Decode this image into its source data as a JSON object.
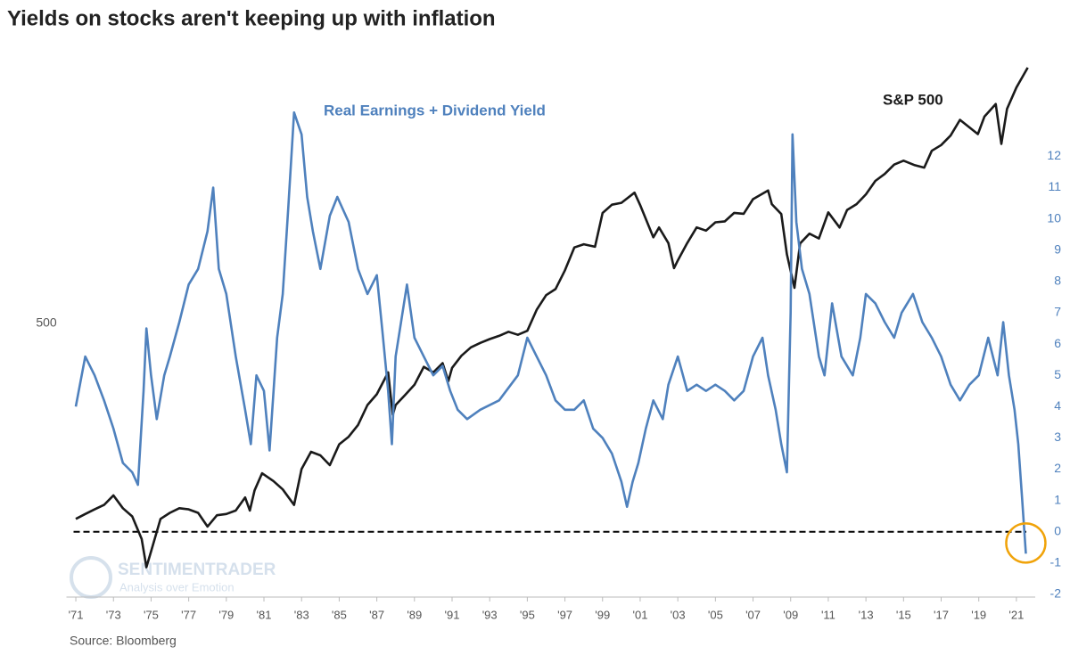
{
  "chart_data": {
    "type": "line",
    "title": "Yields on stocks aren't keeping up with inflation",
    "source": "Source: Bloomberg",
    "watermark": [
      "SENTIMENTRADER",
      "Analysis over Emotion"
    ],
    "log_scale": true,
    "xlim": [
      1970.5,
      2022
    ],
    "xticks": [
      {
        "value": 1971,
        "label": "'71"
      },
      {
        "value": 1973,
        "label": "'73"
      },
      {
        "value": 1975,
        "label": "'75"
      },
      {
        "value": 1977,
        "label": "'77"
      },
      {
        "value": 1979,
        "label": "'79"
      },
      {
        "value": 1981,
        "label": "'81"
      },
      {
        "value": 1983,
        "label": "'83"
      },
      {
        "value": 1985,
        "label": "'85"
      },
      {
        "value": 1987,
        "label": "'87"
      },
      {
        "value": 1989,
        "label": "'89"
      },
      {
        "value": 1991,
        "label": "'91"
      },
      {
        "value": 1993,
        "label": "'93"
      },
      {
        "value": 1995,
        "label": "'95"
      },
      {
        "value": 1997,
        "label": "'97"
      },
      {
        "value": 1999,
        "label": "'99"
      },
      {
        "value": 2001,
        "label": "'01"
      },
      {
        "value": 2003,
        "label": "'03"
      },
      {
        "value": 2005,
        "label": "'05"
      },
      {
        "value": 2007,
        "label": "'07"
      },
      {
        "value": 2009,
        "label": "'09"
      },
      {
        "value": 2011,
        "label": "'11"
      },
      {
        "value": 2013,
        "label": "'13"
      },
      {
        "value": 2015,
        "label": "'15"
      },
      {
        "value": 2017,
        "label": "'17"
      },
      {
        "value": 2019,
        "label": "'19"
      },
      {
        "value": 2021,
        "label": "'21"
      }
    ],
    "ylim": [
      50,
      4600
    ],
    "yticks": [
      500
    ],
    "y2lim": [
      -2,
      15
    ],
    "y2ticks": [
      -2,
      -1,
      0,
      1,
      2,
      3,
      4,
      5,
      6,
      7,
      8,
      9,
      10,
      11,
      12
    ],
    "reference_line": {
      "value": 0,
      "axis": "y2"
    },
    "series": [
      {
        "name": "S&P 500",
        "color": "#1a1a1a",
        "x": [
          1971.0,
          1971.5,
          1972.0,
          1972.5,
          1973.0,
          1973.5,
          1974.0,
          1974.5,
          1974.75,
          1975.0,
          1975.5,
          1976.0,
          1976.5,
          1977.0,
          1977.5,
          1978.0,
          1978.5,
          1979.0,
          1979.5,
          1980.0,
          1980.25,
          1980.5,
          1980.9,
          1981.5,
          1982.0,
          1982.6,
          1983.0,
          1983.5,
          1984.0,
          1984.5,
          1985.0,
          1985.5,
          1986.0,
          1986.5,
          1987.0,
          1987.6,
          1987.85,
          1988.0,
          1988.5,
          1989.0,
          1989.5,
          1990.0,
          1990.5,
          1990.8,
          1991.0,
          1991.5,
          1992.0,
          1992.5,
          1993.0,
          1993.5,
          1994.0,
          1994.5,
          1995.0,
          1995.5,
          1996.0,
          1996.5,
          1997.0,
          1997.5,
          1998.0,
          1998.6,
          1999.0,
          1999.5,
          2000.0,
          2000.7,
          2001.0,
          2001.7,
          2002.0,
          2002.5,
          2002.8,
          2003.0,
          2003.5,
          2004.0,
          2004.5,
          2005.0,
          2005.5,
          2006.0,
          2006.5,
          2007.0,
          2007.8,
          2008.0,
          2008.5,
          2008.8,
          2009.2,
          2009.5,
          2010.0,
          2010.5,
          2011.0,
          2011.6,
          2012.0,
          2012.5,
          2013.0,
          2013.5,
          2014.0,
          2014.5,
          2015.0,
          2015.6,
          2016.1,
          2016.5,
          2017.0,
          2017.5,
          2018.0,
          2018.95,
          2019.3,
          2019.9,
          2020.2,
          2020.5,
          2021.0,
          2021.6
        ],
        "values": [
          95,
          99,
          103,
          107,
          116,
          104,
          97,
          80,
          63,
          72,
          95,
          100,
          104,
          103,
          100,
          89,
          98,
          99,
          102,
          114,
          102,
          121,
          140,
          131,
          122,
          107,
          145,
          168,
          163,
          150,
          179,
          191,
          211,
          250,
          274,
          330,
          230,
          250,
          272,
          297,
          346,
          330,
          357,
          306,
          343,
          380,
          408,
          424,
          438,
          450,
          466,
          454,
          470,
          562,
          636,
          670,
          786,
          954,
          980,
          960,
          1279,
          1372,
          1394,
          1520,
          1366,
          1040,
          1130,
          990,
          800,
          855,
          990,
          1131,
          1101,
          1181,
          1191,
          1280,
          1270,
          1438,
          1549,
          1378,
          1267,
          900,
          677,
          987,
          1073,
          1030,
          1286,
          1130,
          1312,
          1379,
          1498,
          1680,
          1782,
          1930,
          1995,
          1920,
          1880,
          2170,
          2278,
          2470,
          2823,
          2500,
          2900,
          3230,
          2300,
          3100,
          3714,
          4400
        ]
      },
      {
        "name": "Real Earnings + Dividend Yield",
        "color": "#4f81bd",
        "axis": "y2",
        "x": [
          1971.0,
          1971.5,
          1972.0,
          1972.5,
          1973.0,
          1973.5,
          1974.0,
          1974.3,
          1974.6,
          1974.75,
          1975.0,
          1975.3,
          1975.7,
          1976.0,
          1976.5,
          1977.0,
          1977.5,
          1978.0,
          1978.3,
          1978.6,
          1979.0,
          1979.5,
          1980.0,
          1980.3,
          1980.6,
          1981.0,
          1981.3,
          1981.7,
          1982.0,
          1982.3,
          1982.6,
          1983.0,
          1983.3,
          1983.6,
          1984.0,
          1984.5,
          1984.9,
          1985.5,
          1986.0,
          1986.5,
          1987.0,
          1987.3,
          1987.6,
          1987.8,
          1988.0,
          1988.6,
          1989.0,
          1989.5,
          1990.0,
          1990.5,
          1990.9,
          1991.3,
          1991.8,
          1992.5,
          1993.5,
          1994.5,
          1995.0,
          1995.5,
          1996.0,
          1996.5,
          1997.0,
          1997.5,
          1998.0,
          1998.5,
          1999.0,
          1999.5,
          2000.0,
          2000.3,
          2000.6,
          2000.9,
          2001.3,
          2001.7,
          2002.2,
          2002.5,
          2003.0,
          2003.5,
          2004.0,
          2004.5,
          2005.0,
          2005.5,
          2006.0,
          2006.5,
          2007.0,
          2007.5,
          2007.8,
          2008.2,
          2008.5,
          2008.8,
          2009.0,
          2009.1,
          2009.3,
          2009.6,
          2010.0,
          2010.5,
          2010.8,
          2011.2,
          2011.7,
          2012.3,
          2012.7,
          2013.0,
          2013.5,
          2014.0,
          2014.5,
          2014.9,
          2015.5,
          2016.0,
          2016.5,
          2017.0,
          2017.5,
          2018.0,
          2018.5,
          2019.0,
          2019.5,
          2020.0,
          2020.3,
          2020.6,
          2020.9,
          2021.1,
          2021.3,
          2021.5
        ],
        "values": [
          4.0,
          5.6,
          5.0,
          4.2,
          3.3,
          2.2,
          1.9,
          1.5,
          4.5,
          6.5,
          5.0,
          3.6,
          5.0,
          5.6,
          6.7,
          7.9,
          8.4,
          9.6,
          11.0,
          8.4,
          7.6,
          5.6,
          3.9,
          2.8,
          5.0,
          4.5,
          2.6,
          6.2,
          7.6,
          10.4,
          13.4,
          12.7,
          10.7,
          9.6,
          8.4,
          10.1,
          10.7,
          9.9,
          8.4,
          7.6,
          8.2,
          6.4,
          4.5,
          2.8,
          5.6,
          7.9,
          6.2,
          5.6,
          5.0,
          5.3,
          4.5,
          3.9,
          3.6,
          3.9,
          4.2,
          5.0,
          6.2,
          5.6,
          5.0,
          4.2,
          3.9,
          3.9,
          4.2,
          3.3,
          3.0,
          2.5,
          1.6,
          0.8,
          1.6,
          2.2,
          3.3,
          4.2,
          3.6,
          4.7,
          5.6,
          4.5,
          4.7,
          4.5,
          4.7,
          4.5,
          4.2,
          4.5,
          5.6,
          6.2,
          5.0,
          3.9,
          2.8,
          1.9,
          7.0,
          12.7,
          9.9,
          8.4,
          7.6,
          5.6,
          5.0,
          7.3,
          5.6,
          5.0,
          6.2,
          7.6,
          7.3,
          6.7,
          6.2,
          7.0,
          7.6,
          6.7,
          6.2,
          5.6,
          4.7,
          4.2,
          4.7,
          5.0,
          6.2,
          5.0,
          6.7,
          5.0,
          3.9,
          2.8,
          1.1,
          -0.7
        ]
      }
    ]
  }
}
